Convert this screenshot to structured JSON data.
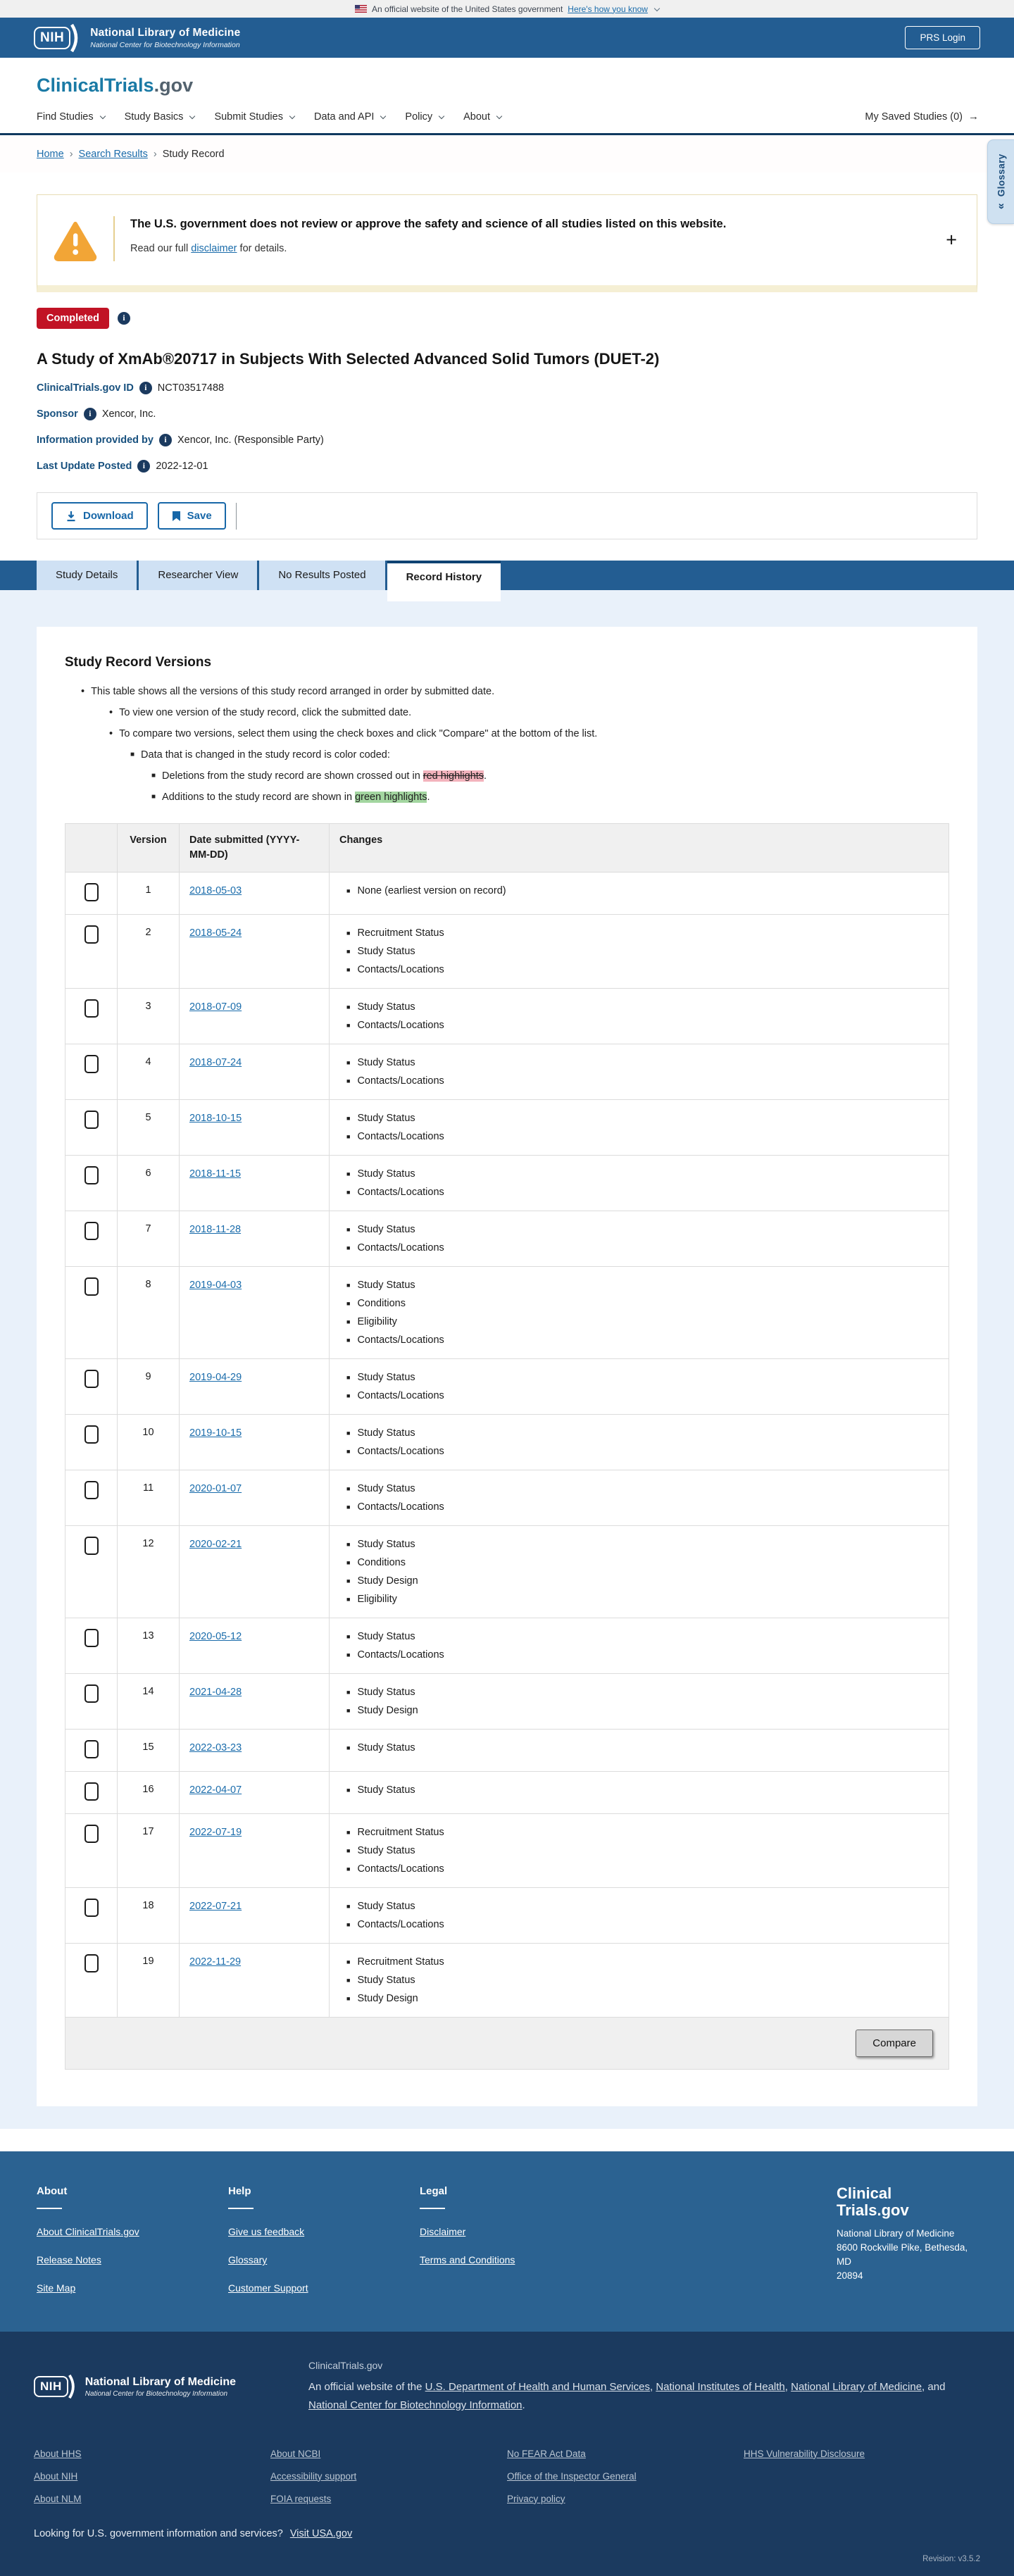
{
  "banner": {
    "official_text": "An official website of the United States government",
    "how_link": "Here's how you know"
  },
  "nih_header": {
    "logo_acronym": "NIH",
    "org_name": "National Library of Medicine",
    "org_sub": "National Center for Biotechnology Information",
    "login_button": "PRS Login"
  },
  "brand": {
    "primary": "ClinicalTrials",
    "suffix": ".gov"
  },
  "nav": {
    "items": [
      "Find Studies",
      "Study Basics",
      "Submit Studies",
      "Data and API",
      "Policy",
      "About"
    ],
    "saved_label": "My Saved Studies (0)",
    "saved_arrow": "→"
  },
  "breadcrumb": [
    {
      "label": "Home",
      "link": true
    },
    {
      "label": "Search Results",
      "link": true
    },
    {
      "label": "Study Record",
      "link": false
    }
  ],
  "glossary_tab": {
    "label": "Glossary",
    "chevron": "«"
  },
  "warning": {
    "headline": "The U.S. government does not review or approve the safety and science of all studies listed on this website.",
    "body_prefix": "Read our full ",
    "link": "disclaimer",
    "body_suffix": " for details.",
    "expand_icon": "+"
  },
  "study": {
    "status_badge": "Completed",
    "title": "A Study of XmAb®20717 in Subjects With Selected Advanced Solid Tumors (DUET-2)",
    "fields": [
      {
        "label": "ClinicalTrials.gov ID",
        "value": "NCT03517488"
      },
      {
        "label": "Sponsor",
        "value": "Xencor, Inc."
      },
      {
        "label": "Information provided by",
        "value": "Xencor, Inc. (Responsible Party)"
      },
      {
        "label": "Last Update Posted",
        "value": "2022-12-01"
      }
    ],
    "actions": {
      "download": "Download",
      "save": "Save"
    }
  },
  "tabs": [
    {
      "label": "Study Details",
      "active": false
    },
    {
      "label": "Researcher View",
      "active": false
    },
    {
      "label": "No Results Posted",
      "active": false
    },
    {
      "label": "Record History",
      "active": true
    }
  ],
  "record_history": {
    "heading": "Study Record Versions",
    "notes": [
      {
        "level": 1,
        "text": "This table shows all the versions of this study record arranged in order by submitted date."
      },
      {
        "level": 2,
        "text": "To view one version of the study record, click the submitted date."
      },
      {
        "level": 2,
        "text": "To compare two versions, select them using the check boxes and click \"Compare\" at the bottom of the list."
      },
      {
        "level": 3,
        "text": "Data that is changed in the study record is color coded:"
      },
      {
        "level": 4,
        "text": "Deletions from the study record are shown crossed out in ",
        "highlight": "red highlights",
        "highlight_type": "red",
        "suffix": "."
      },
      {
        "level": 4,
        "text": "Additions to the study record are shown in ",
        "highlight": "green highlights",
        "highlight_type": "green",
        "suffix": "."
      }
    ],
    "table": {
      "headers": [
        "",
        "Version",
        "Date submitted (YYYY-MM-DD)",
        "Changes"
      ],
      "rows": [
        {
          "version": "1",
          "date": "2018-05-03",
          "changes": [
            "None (earliest version on record)"
          ]
        },
        {
          "version": "2",
          "date": "2018-05-24",
          "changes": [
            "Recruitment Status",
            "Study Status",
            "Contacts/Locations"
          ]
        },
        {
          "version": "3",
          "date": "2018-07-09",
          "changes": [
            "Study Status",
            "Contacts/Locations"
          ]
        },
        {
          "version": "4",
          "date": "2018-07-24",
          "changes": [
            "Study Status",
            "Contacts/Locations"
          ]
        },
        {
          "version": "5",
          "date": "2018-10-15",
          "changes": [
            "Study Status",
            "Contacts/Locations"
          ]
        },
        {
          "version": "6",
          "date": "2018-11-15",
          "changes": [
            "Study Status",
            "Contacts/Locations"
          ]
        },
        {
          "version": "7",
          "date": "2018-11-28",
          "changes": [
            "Study Status",
            "Contacts/Locations"
          ]
        },
        {
          "version": "8",
          "date": "2019-04-03",
          "changes": [
            "Study Status",
            "Conditions",
            "Eligibility",
            "Contacts/Locations"
          ]
        },
        {
          "version": "9",
          "date": "2019-04-29",
          "changes": [
            "Study Status",
            "Contacts/Locations"
          ]
        },
        {
          "version": "10",
          "date": "2019-10-15",
          "changes": [
            "Study Status",
            "Contacts/Locations"
          ]
        },
        {
          "version": "11",
          "date": "2020-01-07",
          "changes": [
            "Study Status",
            "Contacts/Locations"
          ]
        },
        {
          "version": "12",
          "date": "2020-02-21",
          "changes": [
            "Study Status",
            "Conditions",
            "Study Design",
            "Eligibility"
          ]
        },
        {
          "version": "13",
          "date": "2020-05-12",
          "changes": [
            "Study Status",
            "Contacts/Locations"
          ]
        },
        {
          "version": "14",
          "date": "2021-04-28",
          "changes": [
            "Study Status",
            "Study Design"
          ]
        },
        {
          "version": "15",
          "date": "2022-03-23",
          "changes": [
            "Study Status"
          ]
        },
        {
          "version": "16",
          "date": "2022-04-07",
          "changes": [
            "Study Status"
          ]
        },
        {
          "version": "17",
          "date": "2022-07-19",
          "changes": [
            "Recruitment Status",
            "Study Status",
            "Contacts/Locations"
          ]
        },
        {
          "version": "18",
          "date": "2022-07-21",
          "changes": [
            "Study Status",
            "Contacts/Locations"
          ]
        },
        {
          "version": "19",
          "date": "2022-11-29",
          "changes": [
            "Recruitment Status",
            "Study Status",
            "Study Design"
          ]
        }
      ],
      "compare_button": "Compare"
    }
  },
  "footer": {
    "columns": [
      {
        "heading": "About",
        "links": [
          "About ClinicalTrials.gov",
          "Release Notes",
          "Site Map"
        ]
      },
      {
        "heading": "Help",
        "links": [
          "Give us feedback",
          "Glossary",
          "Customer Support"
        ]
      },
      {
        "heading": "Legal",
        "links": [
          "Disclaimer",
          "Terms and Conditions"
        ]
      }
    ],
    "brand_line1": "Clinical",
    "brand_line2": "Trials.gov",
    "address_lines": [
      "National Library of Medicine",
      "8600 Rockville Pike, Bethesda, MD",
      "20894"
    ]
  },
  "subfooter": {
    "org_name": "National Library of Medicine",
    "org_sub": "National Center for Biotechnology Information",
    "site_label": "ClinicalTrials.gov",
    "official_parts": [
      {
        "t": "An official website of the "
      },
      {
        "t": "U.S. Department of Health and Human Services",
        "link": true
      },
      {
        "t": ", "
      },
      {
        "t": "National Institutes of Health",
        "link": true
      },
      {
        "t": ", "
      },
      {
        "t": "National Library of Medicine",
        "link": true
      },
      {
        "t": ", and "
      },
      {
        "t": "National Center for Biotechnology Information",
        "link": true
      },
      {
        "t": "."
      }
    ],
    "link_columns": [
      [
        "About HHS",
        "About NIH",
        "About NLM"
      ],
      [
        "About NCBI",
        "Accessibility support",
        "FOIA requests"
      ],
      [
        "No FEAR Act Data",
        "Office of the Inspector General",
        "Privacy policy"
      ],
      [
        "HHS Vulnerability Disclosure"
      ]
    ],
    "usa_text": "Looking for U.S. government information and services?",
    "usa_link": "Visit USA.gov",
    "revision": "Revision: v3.5.2"
  }
}
